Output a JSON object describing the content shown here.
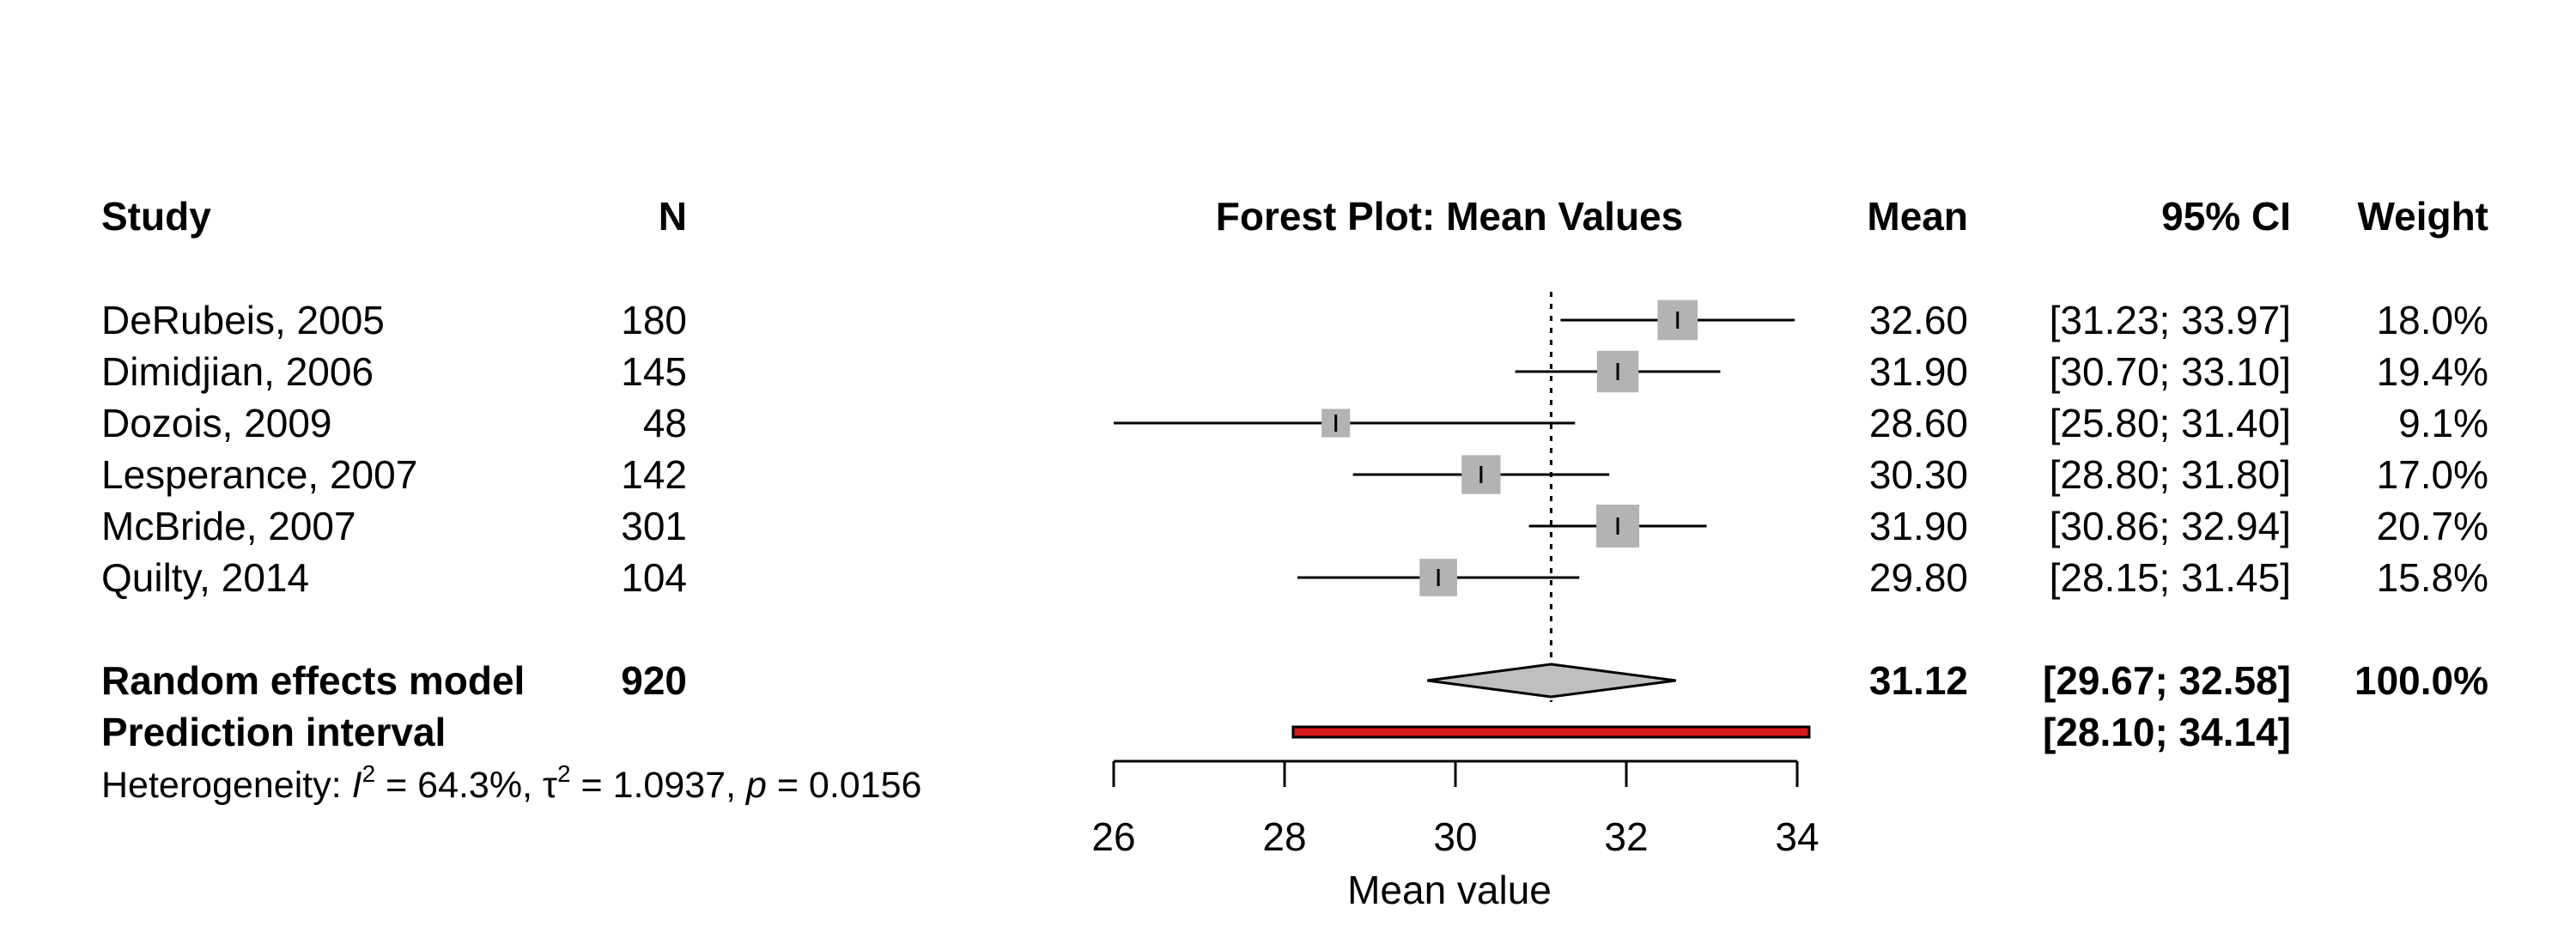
{
  "chart_data": {
    "type": "forest",
    "title": "Forest Plot: Mean Values",
    "xlabel": "Mean value",
    "xlim": [
      26,
      34
    ],
    "x_ticks": [
      "26",
      "28",
      "30",
      "32",
      "34"
    ],
    "reference_line": 31.12,
    "columns": {
      "study": "Study",
      "n": "N",
      "mean": "Mean",
      "ci": "95% CI",
      "weight": "Weight"
    },
    "studies": [
      {
        "study": "DeRubeis, 2005",
        "n": "180",
        "mean": 32.6,
        "lower": 31.23,
        "upper": 33.97,
        "mean_text": "32.60",
        "ci_text": "[31.23; 33.97]",
        "weight": 18.0,
        "weight_text": "18.0%"
      },
      {
        "study": "Dimidjian, 2006",
        "n": "145",
        "mean": 31.9,
        "lower": 30.7,
        "upper": 33.1,
        "mean_text": "31.90",
        "ci_text": "[30.70; 33.10]",
        "weight": 19.4,
        "weight_text": "19.4%"
      },
      {
        "study": "Dozois, 2009",
        "n": "48",
        "mean": 28.6,
        "lower": 25.8,
        "upper": 31.4,
        "mean_text": "28.60",
        "ci_text": "[25.80; 31.40]",
        "weight": 9.1,
        "weight_text": "9.1%"
      },
      {
        "study": "Lesperance, 2007",
        "n": "142",
        "mean": 30.3,
        "lower": 28.8,
        "upper": 31.8,
        "mean_text": "30.30",
        "ci_text": "[28.80; 31.80]",
        "weight": 17.0,
        "weight_text": "17.0%"
      },
      {
        "study": "McBride, 2007",
        "n": "301",
        "mean": 31.9,
        "lower": 30.86,
        "upper": 32.94,
        "mean_text": "31.90",
        "ci_text": "[30.86; 32.94]",
        "weight": 20.7,
        "weight_text": "20.7%"
      },
      {
        "study": "Quilty, 2014",
        "n": "104",
        "mean": 29.8,
        "lower": 28.15,
        "upper": 31.45,
        "mean_text": "29.80",
        "ci_text": "[28.15; 31.45]",
        "weight": 15.8,
        "weight_text": "15.8%"
      }
    ],
    "pooled": {
      "label": "Random effects model",
      "n": "920",
      "mean": 31.12,
      "lower": 29.67,
      "upper": 32.58,
      "mean_text": "31.12",
      "ci_text": "[29.67; 32.58]",
      "weight_text": "100.0%"
    },
    "prediction": {
      "label": "Prediction interval",
      "lower": 28.1,
      "upper": 34.14,
      "ci_text": "[28.10; 34.14]"
    },
    "heterogeneity": {
      "prefix": "Heterogeneity: ",
      "i2_symbol": "I",
      "sup": "2",
      "i2_text": " = 64.3%, ",
      "tau_symbol": "τ",
      "tau_text": " = 1.0937, ",
      "p_symbol": "p",
      "p_text": " = 0.0156"
    },
    "colors": {
      "square": "#b3b3b3",
      "diamond": "#bfbfbf",
      "prediction_bar": "#d7191c"
    }
  }
}
